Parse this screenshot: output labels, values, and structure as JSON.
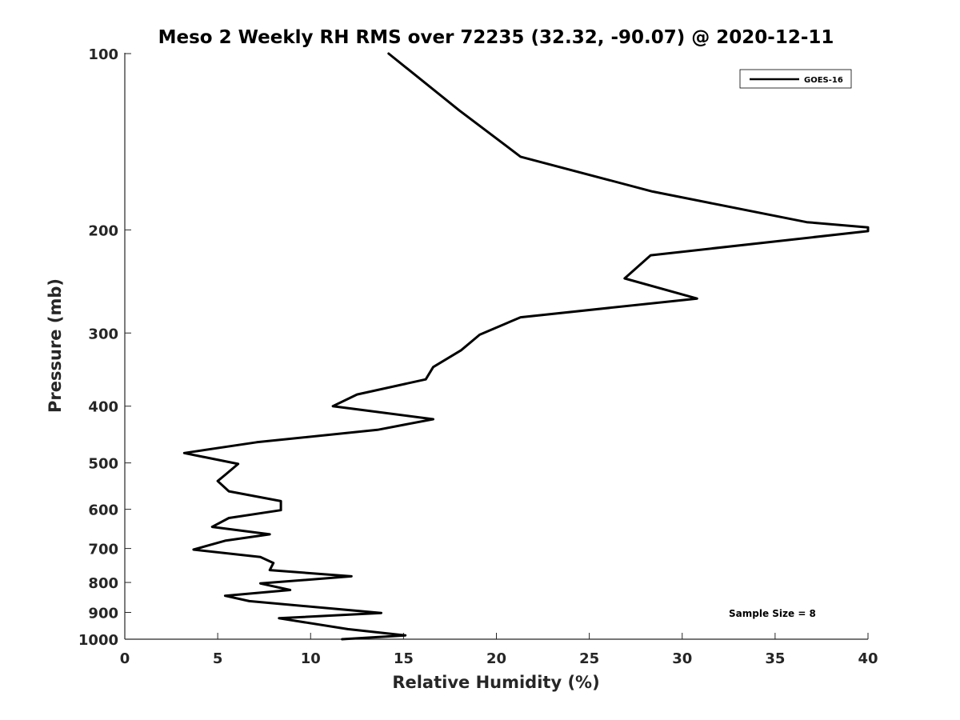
{
  "chart_data": {
    "type": "line",
    "title": "Meso 2 Weekly RH RMS over 72235 (32.32, -90.07) @ 2020-12-11",
    "xlabel": "Relative Humidity (%)",
    "ylabel": "Pressure (mb)",
    "xlim": [
      0,
      40
    ],
    "ylim": [
      100,
      1000
    ],
    "yscale": "log",
    "yreversed": true,
    "grid": false,
    "xticks": [
      0,
      5,
      10,
      15,
      20,
      25,
      30,
      35,
      40
    ],
    "xtick_labels": [
      "0",
      "5",
      "10",
      "15",
      "20",
      "25",
      "30",
      "35",
      "40"
    ],
    "yticks": [
      100,
      200,
      300,
      400,
      500,
      600,
      700,
      800,
      900,
      1000
    ],
    "ytick_labels": [
      "100",
      "200",
      "300",
      "400",
      "500",
      "600",
      "700",
      "800",
      "900",
      "1000"
    ],
    "legend_position": "top-right",
    "series": [
      {
        "name": "GOES-16",
        "color": "#000000",
        "x": [
          14.2,
          18.0,
          21.3,
          28.4,
          36.7,
          40.0,
          40.0,
          28.3,
          26.9,
          30.8,
          21.3,
          19.1,
          18.1,
          16.6,
          16.2,
          12.5,
          11.2,
          16.6,
          13.6,
          7.1,
          3.2,
          6.1,
          5.4,
          5.0,
          5.6,
          8.4,
          8.4,
          5.6,
          4.7,
          7.8,
          5.4,
          3.7,
          7.3,
          8.0,
          7.8,
          12.2,
          7.3,
          8.9,
          5.4,
          6.7,
          13.8,
          8.3,
          12.0,
          15.1,
          11.7
        ],
        "y": [
          100,
          125,
          150,
          172,
          194,
          198,
          201,
          221,
          242,
          262,
          282,
          302,
          321,
          343,
          360,
          382,
          400,
          421,
          439,
          461,
          481,
          502,
          524,
          537,
          559,
          581,
          602,
          621,
          643,
          662,
          679,
          703,
          724,
          741,
          762,
          781,
          803,
          824,
          843,
          861,
          902,
          921,
          961,
          985,
          1000
        ]
      }
    ],
    "annotations": [
      "Sample Size = 8"
    ]
  }
}
